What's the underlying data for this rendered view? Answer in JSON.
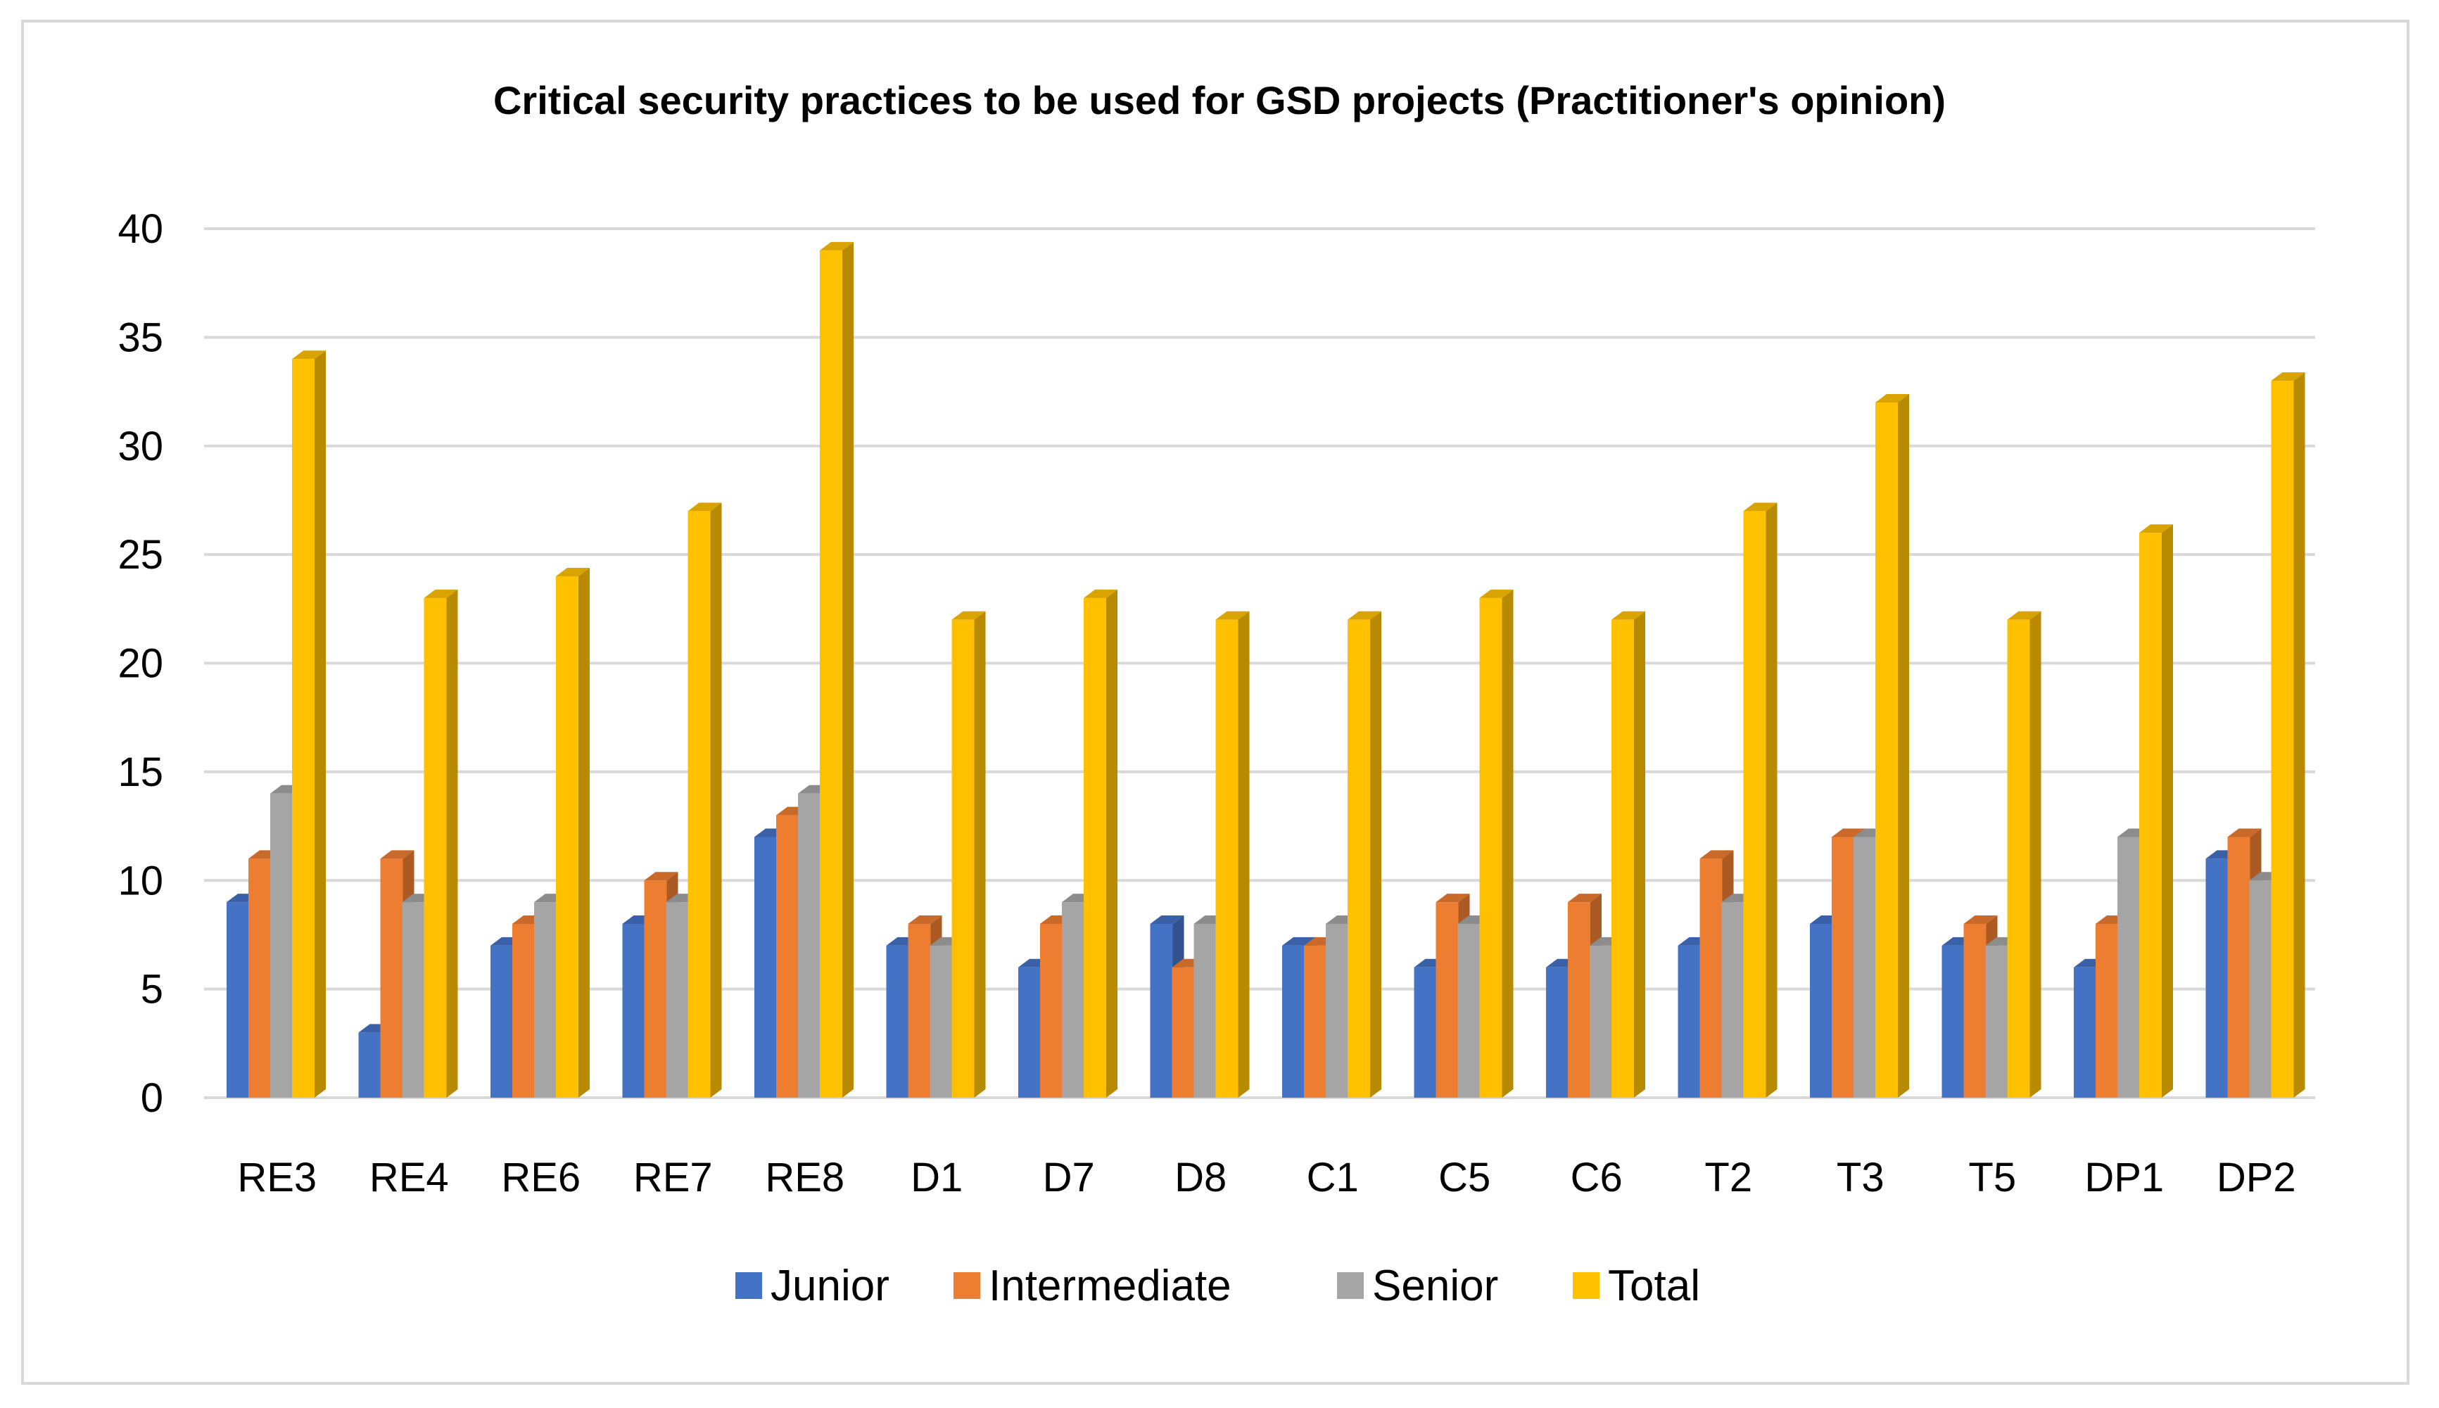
{
  "chart_data": {
    "type": "bar",
    "title": "Critical security practices to be used for GSD projects (Practitioner's opinion)",
    "xlabel": "",
    "ylabel": "",
    "ylim": [
      0,
      40
    ],
    "yticks": [
      0,
      5,
      10,
      15,
      20,
      25,
      30,
      35,
      40
    ],
    "grid": true,
    "legend_position": "bottom",
    "categories": [
      "RE3",
      "RE4",
      "RE6",
      "RE7",
      "RE8",
      "D1",
      "D7",
      "D8",
      "C1",
      "C5",
      "C6",
      "T2",
      "T3",
      "T5",
      "DP1",
      "DP2"
    ],
    "series": [
      {
        "name": "Junior",
        "color": "#4472c4",
        "values": [
          9,
          3,
          7,
          8,
          12,
          7,
          6,
          8,
          7,
          6,
          6,
          7,
          8,
          7,
          6,
          11
        ]
      },
      {
        "name": "Intermediate",
        "color": "#ed7d31",
        "values": [
          11,
          11,
          8,
          10,
          13,
          8,
          8,
          6,
          7,
          9,
          9,
          11,
          12,
          8,
          8,
          12
        ]
      },
      {
        "name": "Senior",
        "color": "#a5a5a5",
        "values": [
          14,
          9,
          9,
          9,
          14,
          7,
          9,
          8,
          8,
          8,
          7,
          9,
          12,
          7,
          12,
          10
        ]
      },
      {
        "name": "Total",
        "color": "#ffc000",
        "values": [
          34,
          23,
          24,
          27,
          39,
          22,
          23,
          22,
          22,
          23,
          22,
          27,
          32,
          22,
          26,
          33
        ]
      }
    ]
  }
}
